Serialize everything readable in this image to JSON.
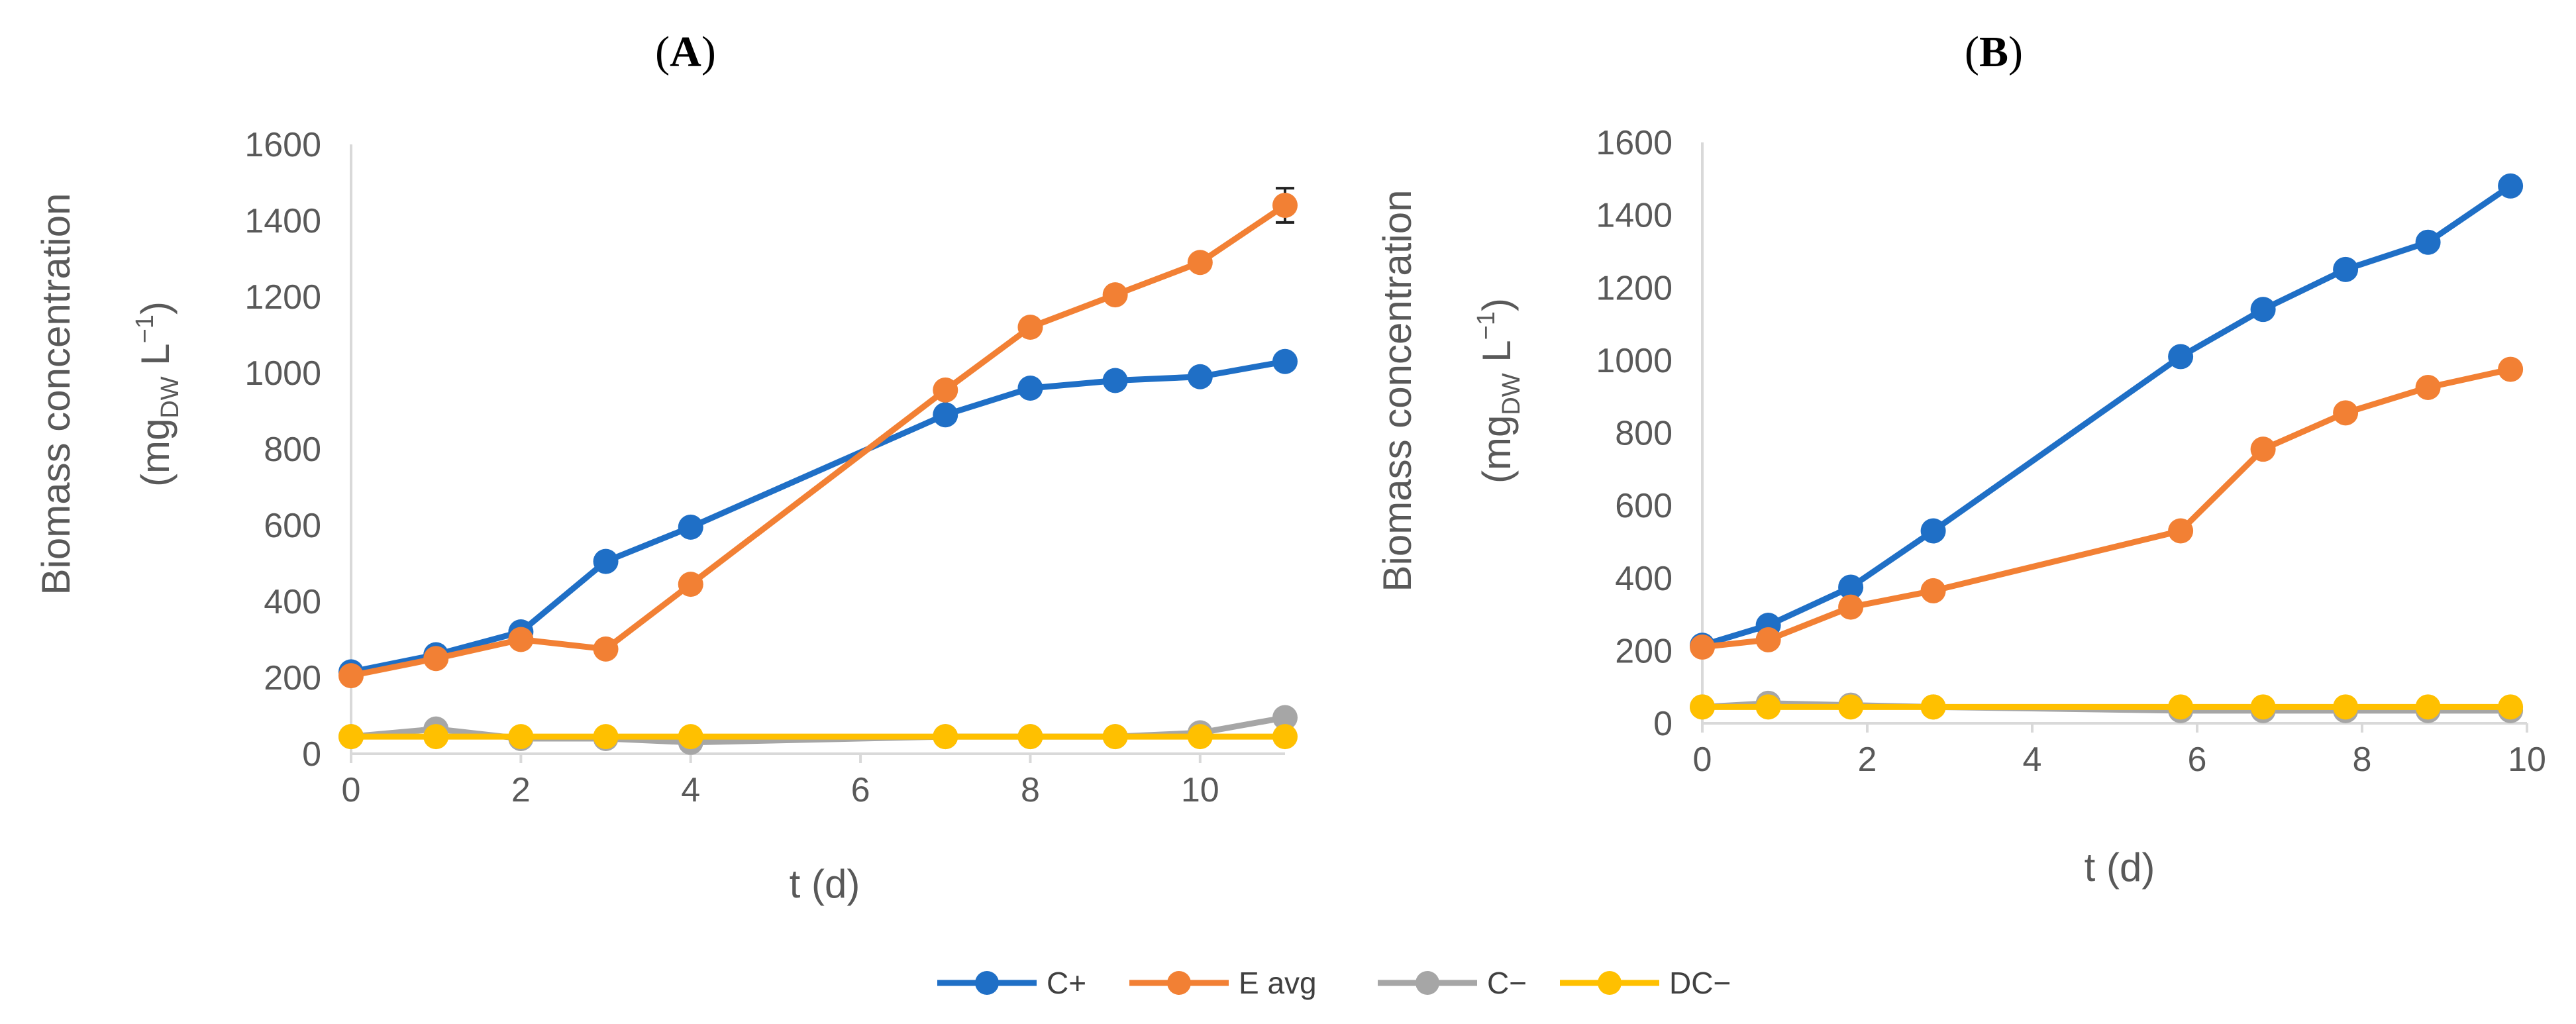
{
  "colors": {
    "C+": "#1F6FC6",
    "E avg": "#F28034",
    "C−": "#A6A6A6",
    "DC−": "#FFC000",
    "axis": "#D9D9D9",
    "text": "#595959"
  },
  "legend": [
    "C+",
    "E avg",
    "C−",
    "DC−"
  ],
  "chart_data": [
    {
      "type": "line",
      "title": "A",
      "xlabel": "t (d)",
      "ylabel": "Biomass concentration",
      "ylabel_unit_prefix": "(mg",
      "ylabel_unit_sub": "DW",
      "ylabel_unit_mid": " L",
      "ylabel_unit_sup": "−1",
      "ylabel_unit_suffix": ")",
      "xlim": [
        0,
        11
      ],
      "ylim": [
        0,
        1600
      ],
      "xticks": [
        0,
        2,
        4,
        6,
        8,
        10
      ],
      "yticks": [
        0,
        200,
        400,
        600,
        800,
        1000,
        1200,
        1400,
        1600
      ],
      "series": [
        {
          "name": "C+",
          "x": [
            0,
            1,
            2,
            3,
            4,
            7,
            8,
            9,
            10,
            11
          ],
          "values": [
            215,
            260,
            320,
            505,
            595,
            890,
            960,
            980,
            990,
            1030
          ]
        },
        {
          "name": "E avg",
          "x": [
            0,
            1,
            2,
            3,
            4,
            7,
            8,
            9,
            10,
            11
          ],
          "values": [
            205,
            250,
            300,
            275,
            445,
            955,
            1120,
            1205,
            1290,
            1440
          ],
          "error": {
            "x": 11,
            "value": 1440,
            "err": 45
          }
        },
        {
          "name": "C−",
          "x": [
            0,
            1,
            2,
            3,
            4,
            7,
            8,
            9,
            10,
            11
          ],
          "values": [
            45,
            65,
            40,
            40,
            30,
            45,
            45,
            45,
            55,
            95
          ]
        },
        {
          "name": "DC−",
          "x": [
            0,
            1,
            2,
            3,
            4,
            7,
            8,
            9,
            10,
            11
          ],
          "values": [
            45,
            45,
            45,
            45,
            45,
            45,
            45,
            45,
            45,
            45
          ]
        }
      ]
    },
    {
      "type": "line",
      "title": "B",
      "xlabel": "t (d)",
      "ylabel": "Biomass concentration",
      "ylabel_unit_prefix": "(mg",
      "ylabel_unit_sub": "DW",
      "ylabel_unit_mid": " L",
      "ylabel_unit_sup": "−1",
      "ylabel_unit_suffix": ")",
      "xlim": [
        0,
        10
      ],
      "ylim": [
        0,
        1600
      ],
      "xticks": [
        0,
        2,
        4,
        6,
        8,
        10
      ],
      "yticks": [
        0,
        200,
        400,
        600,
        800,
        1000,
        1200,
        1400,
        1600
      ],
      "series": [
        {
          "name": "C+",
          "x": [
            0,
            0.8,
            1.8,
            2.8,
            5.8,
            6.8,
            7.8,
            8.8,
            9.8
          ],
          "values": [
            215,
            270,
            375,
            530,
            1010,
            1140,
            1250,
            1325,
            1480
          ]
        },
        {
          "name": "E avg",
          "x": [
            0,
            0.8,
            1.8,
            2.8,
            5.8,
            6.8,
            7.8,
            8.8,
            9.8
          ],
          "values": [
            210,
            230,
            320,
            365,
            530,
            755,
            855,
            925,
            975
          ]
        },
        {
          "name": "C−",
          "x": [
            0,
            0.8,
            1.8,
            2.8,
            5.8,
            6.8,
            7.8,
            8.8,
            9.8
          ],
          "values": [
            45,
            55,
            50,
            45,
            35,
            35,
            35,
            35,
            35
          ]
        },
        {
          "name": "DC−",
          "x": [
            0,
            0.8,
            1.8,
            2.8,
            5.8,
            6.8,
            7.8,
            8.8,
            9.8
          ],
          "values": [
            45,
            45,
            45,
            45,
            45,
            45,
            45,
            45,
            45
          ]
        }
      ]
    }
  ]
}
